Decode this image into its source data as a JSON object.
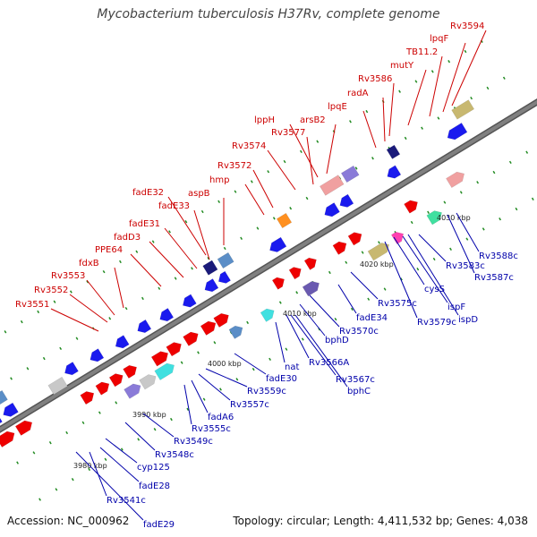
{
  "title": "Mycobacterium tuberculosis H37Rv, complete genome",
  "footer": {
    "accession": "Accession: NC_000962",
    "info": "Topology: circular; Length: 4,411,532 bp; Genes: 4,038"
  },
  "colors": {
    "forward_label": "#cc0000",
    "reverse_label": "#0000aa",
    "forward_gene": "#ee0000",
    "reverse_gene": "#1a1aee",
    "backbone": "#808080",
    "tick": "#228b22"
  },
  "scale_labels": [
    "3980 kbp",
    "3990 kbp",
    "4000 kbp",
    "4010 kbp",
    "4020 kbp",
    "4030 kbp"
  ],
  "forward_labels": [
    "Rv3551",
    "Rv3552",
    "Rv3553",
    "fdxB",
    "PPE64",
    "fadD3",
    "fadE31",
    "fadE33",
    "fadE32",
    "aspB",
    "hmp",
    "Rv3572",
    "Rv3574",
    "Rv3577",
    "lppH",
    "arsB2",
    "lpqE",
    "radA",
    "Rv3586",
    "mutY",
    "TB11.2",
    "lpqF",
    "Rv3594"
  ],
  "reverse_labels": [
    "fadE29",
    "Rv3541c",
    "fadE28",
    "cyp125",
    "Rv3548c",
    "Rv3549c",
    "Rv3555c",
    "fadA6",
    "Rv3557c",
    "Rv3559c",
    "fadE30",
    "nat",
    "Rv3566A",
    "Rv3567c",
    "bphC",
    "bphD",
    "Rv3570c",
    "fadE34",
    "Rv3575c",
    "Rv3579c",
    "cysS",
    "ispF",
    "ispD",
    "Rv3583c",
    "Rv3587c",
    "Rv3588c"
  ]
}
